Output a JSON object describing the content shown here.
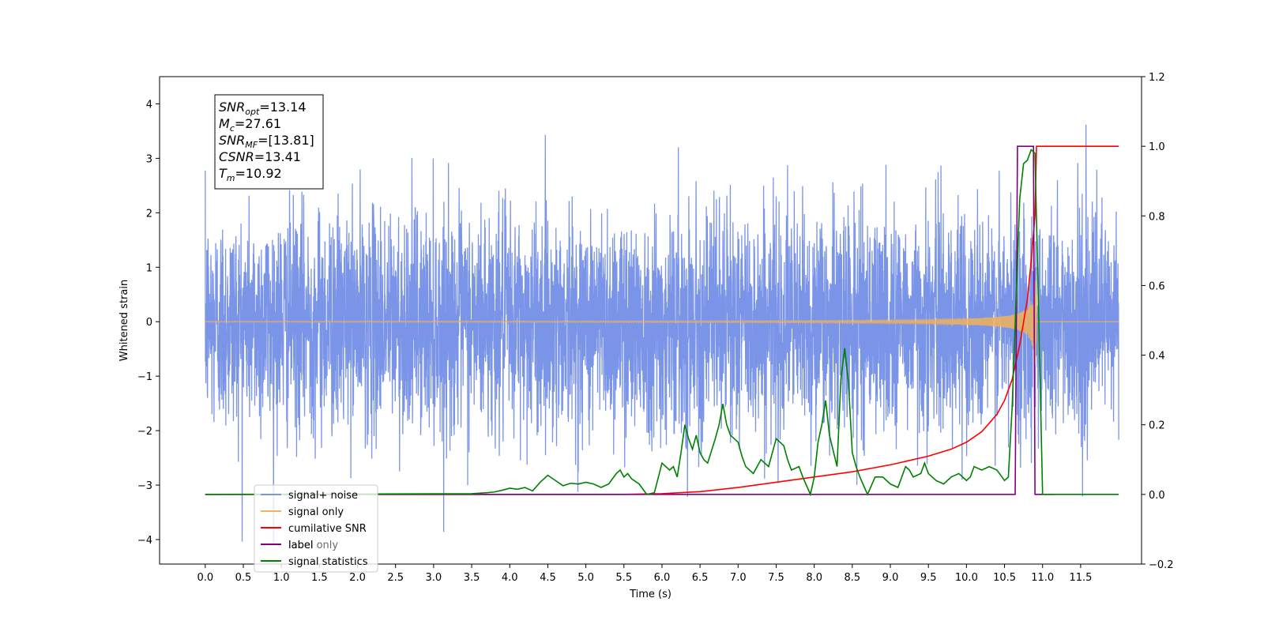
{
  "chart_data": {
    "type": "line",
    "xlabel": "Time (s)",
    "ylabel": "Whitened strain",
    "xlim": [
      -0.6,
      12.3
    ],
    "ylim": [
      -4.45,
      4.5
    ],
    "y2lim": [
      -0.2,
      1.2
    ],
    "xticks": [
      "0.0",
      "0.5",
      "1.0",
      "1.5",
      "2.0",
      "2.5",
      "3.0",
      "3.5",
      "4.0",
      "4.5",
      "5.0",
      "5.5",
      "6.0",
      "6.5",
      "7.0",
      "7.5",
      "8.0",
      "8.5",
      "9.0",
      "9.5",
      "10.0",
      "10.5",
      "11.0",
      "11.5"
    ],
    "yticks": [
      "−4",
      "−3",
      "−2",
      "−1",
      "0",
      "1",
      "2",
      "3",
      "4"
    ],
    "y2ticks": [
      "−0.2",
      "0.0",
      "0.2",
      "0.4",
      "0.6",
      "0.8",
      "1.0",
      "1.2"
    ],
    "grid": false,
    "legend_position": "lower-left",
    "annotation": {
      "lines": [
        {
          "main": "SNR",
          "sub": "opt",
          "rest": "=13.14"
        },
        {
          "main": "M",
          "sub": "c",
          "rest": "=27.61"
        },
        {
          "main": "SNR",
          "sub": "MF",
          "rest": "=[13.81]"
        },
        {
          "main": "CSNR",
          "sub": "",
          "rest": "=13.41"
        },
        {
          "main": "T",
          "sub": "m",
          "rest": "=10.92"
        }
      ]
    },
    "series": [
      {
        "name": "signal+ noise",
        "color": "#7a94e8",
        "axis": "left",
        "x_range": [
          0,
          12.0
        ],
        "amplitude_sigma": 1.0
      },
      {
        "name": "signal only",
        "color": "#f2b25c",
        "axis": "left",
        "x_range": [
          0,
          12.0
        ],
        "merger_time": 10.92,
        "peak_amplitude": 1.25
      },
      {
        "name": "cumilative SNR",
        "color": "#ff0000",
        "axis": "right",
        "points": [
          [
            0,
            0
          ],
          [
            5.5,
            0
          ],
          [
            6.0,
            0.002
          ],
          [
            6.5,
            0.008
          ],
          [
            7.0,
            0.02
          ],
          [
            7.5,
            0.035
          ],
          [
            8.0,
            0.05
          ],
          [
            8.5,
            0.065
          ],
          [
            9.0,
            0.085
          ],
          [
            9.5,
            0.11
          ],
          [
            9.8,
            0.13
          ],
          [
            10.0,
            0.15
          ],
          [
            10.2,
            0.18
          ],
          [
            10.4,
            0.23
          ],
          [
            10.5,
            0.27
          ],
          [
            10.6,
            0.33
          ],
          [
            10.7,
            0.43
          ],
          [
            10.8,
            0.56
          ],
          [
            10.85,
            0.67
          ],
          [
            10.9,
            0.8
          ],
          [
            10.92,
            1.0
          ],
          [
            12.0,
            1.0
          ]
        ]
      },
      {
        "name": "label",
        "color": "#800080",
        "axis": "right",
        "points": [
          [
            0,
            0
          ],
          [
            10.64,
            0
          ],
          [
            10.67,
            1.0
          ],
          [
            10.88,
            1.0
          ],
          [
            10.9,
            0.0
          ],
          [
            11.15,
            0.0
          ]
        ]
      },
      {
        "name": "label only",
        "color": "#808080",
        "axis": "right",
        "points": []
      },
      {
        "name": "signal statistics",
        "color": "#008000",
        "axis": "right",
        "points": [
          [
            0,
            0
          ],
          [
            3.5,
            0.002
          ],
          [
            3.7,
            0.005
          ],
          [
            3.8,
            0.007
          ],
          [
            3.9,
            0.012
          ],
          [
            4.0,
            0.018
          ],
          [
            4.1,
            0.015
          ],
          [
            4.2,
            0.02
          ],
          [
            4.3,
            0.01
          ],
          [
            4.4,
            0.035
          ],
          [
            4.5,
            0.055
          ],
          [
            4.6,
            0.04
          ],
          [
            4.7,
            0.025
          ],
          [
            4.8,
            0.032
          ],
          [
            4.9,
            0.03
          ],
          [
            5.0,
            0.035
          ],
          [
            5.1,
            0.03
          ],
          [
            5.2,
            0.02
          ],
          [
            5.3,
            0.03
          ],
          [
            5.35,
            0.045
          ],
          [
            5.4,
            0.06
          ],
          [
            5.45,
            0.07
          ],
          [
            5.5,
            0.05
          ],
          [
            5.55,
            0.06
          ],
          [
            5.6,
            0.045
          ],
          [
            5.7,
            0.03
          ],
          [
            5.8,
            0.0
          ],
          [
            5.9,
            0.005
          ],
          [
            6.0,
            0.09
          ],
          [
            6.1,
            0.07
          ],
          [
            6.15,
            0.08
          ],
          [
            6.2,
            0.05
          ],
          [
            6.25,
            0.12
          ],
          [
            6.3,
            0.2
          ],
          [
            6.35,
            0.16
          ],
          [
            6.4,
            0.13
          ],
          [
            6.45,
            0.17
          ],
          [
            6.5,
            0.12
          ],
          [
            6.55,
            0.1
          ],
          [
            6.6,
            0.09
          ],
          [
            6.7,
            0.16
          ],
          [
            6.75,
            0.2
          ],
          [
            6.8,
            0.26
          ],
          [
            6.85,
            0.2
          ],
          [
            6.9,
            0.17
          ],
          [
            6.95,
            0.16
          ],
          [
            7.0,
            0.15
          ],
          [
            7.05,
            0.11
          ],
          [
            7.1,
            0.08
          ],
          [
            7.2,
            0.06
          ],
          [
            7.3,
            0.1
          ],
          [
            7.35,
            0.09
          ],
          [
            7.4,
            0.08
          ],
          [
            7.5,
            0.16
          ],
          [
            7.6,
            0.14
          ],
          [
            7.65,
            0.1
          ],
          [
            7.7,
            0.07
          ],
          [
            7.8,
            0.08
          ],
          [
            7.85,
            0.05
          ],
          [
            7.95,
            0.0
          ],
          [
            8.0,
            0.05
          ],
          [
            8.05,
            0.15
          ],
          [
            8.1,
            0.2
          ],
          [
            8.15,
            0.27
          ],
          [
            8.2,
            0.17
          ],
          [
            8.3,
            0.08
          ],
          [
            8.35,
            0.33
          ],
          [
            8.4,
            0.42
          ],
          [
            8.45,
            0.32
          ],
          [
            8.5,
            0.12
          ],
          [
            8.55,
            0.08
          ],
          [
            8.6,
            0.05
          ],
          [
            8.7,
            0.0
          ],
          [
            8.8,
            0.05
          ],
          [
            8.9,
            0.05
          ],
          [
            9.0,
            0.03
          ],
          [
            9.1,
            0.02
          ],
          [
            9.2,
            0.08
          ],
          [
            9.25,
            0.07
          ],
          [
            9.3,
            0.05
          ],
          [
            9.4,
            0.06
          ],
          [
            9.45,
            0.09
          ],
          [
            9.5,
            0.06
          ],
          [
            9.6,
            0.04
          ],
          [
            9.7,
            0.03
          ],
          [
            9.8,
            0.05
          ],
          [
            9.9,
            0.06
          ],
          [
            10.0,
            0.04
          ],
          [
            10.05,
            0.05
          ],
          [
            10.1,
            0.08
          ],
          [
            10.2,
            0.07
          ],
          [
            10.3,
            0.08
          ],
          [
            10.4,
            0.07
          ],
          [
            10.5,
            0.04
          ],
          [
            10.55,
            0.05
          ],
          [
            10.6,
            0.25
          ],
          [
            10.65,
            0.55
          ],
          [
            10.7,
            0.85
          ],
          [
            10.75,
            0.95
          ],
          [
            10.8,
            0.96
          ],
          [
            10.85,
            0.99
          ],
          [
            10.9,
            0.98
          ],
          [
            10.95,
            0.5
          ],
          [
            11.0,
            0.0
          ],
          [
            12.0,
            0.0
          ]
        ]
      }
    ]
  }
}
